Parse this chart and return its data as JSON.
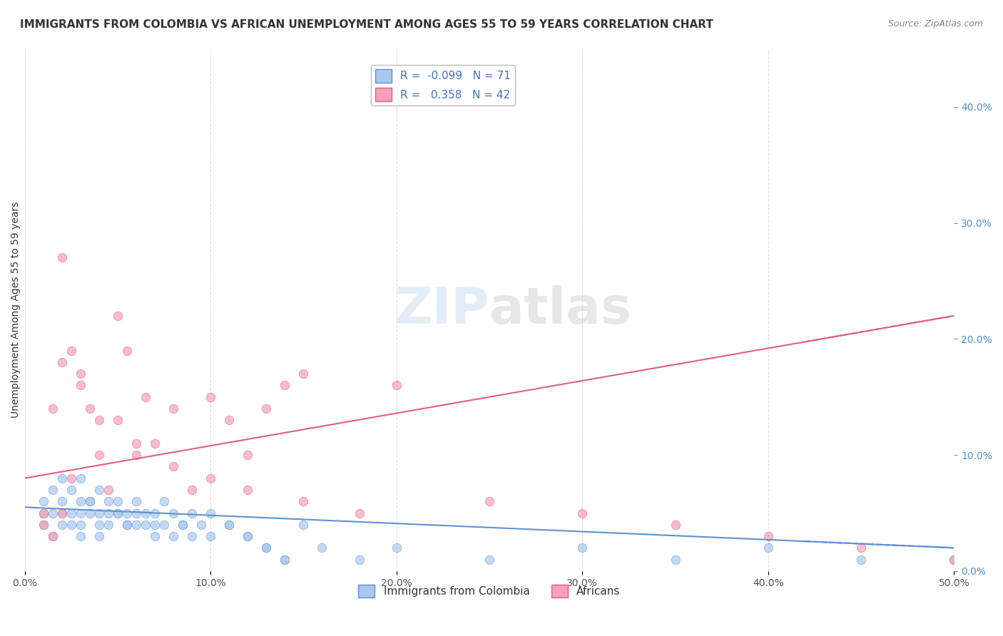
{
  "title": "IMMIGRANTS FROM COLOMBIA VS AFRICAN UNEMPLOYMENT AMONG AGES 55 TO 59 YEARS CORRELATION CHART",
  "source": "Source: ZipAtlas.com",
  "ylabel": "Unemployment Among Ages 55 to 59 years",
  "series1_label": "Immigrants from Colombia",
  "series2_label": "Africans",
  "R1": -0.099,
  "N1": 71,
  "R2": 0.358,
  "N2": 42,
  "color1": "#a8c8f0",
  "color2": "#f4a0b8",
  "trendline1_color": "#6090d0",
  "trendline2_color": "#e06080",
  "xlim": [
    0.0,
    0.5
  ],
  "ylim": [
    0.0,
    0.45
  ],
  "xticks": [
    0.0,
    0.1,
    0.2,
    0.3,
    0.4,
    0.5
  ],
  "yticks": [
    0.0,
    0.1,
    0.2,
    0.3,
    0.4
  ],
  "background_color": "#ffffff",
  "grid_color": "#dddddd",
  "scatter1_x": [
    0.01,
    0.01,
    0.01,
    0.015,
    0.015,
    0.02,
    0.02,
    0.02,
    0.025,
    0.025,
    0.03,
    0.03,
    0.03,
    0.03,
    0.035,
    0.035,
    0.04,
    0.04,
    0.04,
    0.045,
    0.045,
    0.05,
    0.05,
    0.055,
    0.055,
    0.06,
    0.06,
    0.065,
    0.07,
    0.07,
    0.075,
    0.08,
    0.085,
    0.09,
    0.095,
    0.1,
    0.11,
    0.12,
    0.13,
    0.14,
    0.015,
    0.02,
    0.025,
    0.03,
    0.035,
    0.04,
    0.045,
    0.05,
    0.055,
    0.06,
    0.065,
    0.07,
    0.075,
    0.08,
    0.085,
    0.09,
    0.1,
    0.11,
    0.12,
    0.13,
    0.14,
    0.15,
    0.16,
    0.18,
    0.2,
    0.25,
    0.3,
    0.35,
    0.4,
    0.45,
    0.5
  ],
  "scatter1_y": [
    0.05,
    0.04,
    0.06,
    0.03,
    0.05,
    0.05,
    0.04,
    0.06,
    0.04,
    0.05,
    0.06,
    0.05,
    0.04,
    0.03,
    0.05,
    0.06,
    0.04,
    0.05,
    0.03,
    0.05,
    0.04,
    0.06,
    0.05,
    0.04,
    0.05,
    0.04,
    0.06,
    0.05,
    0.04,
    0.05,
    0.06,
    0.05,
    0.04,
    0.05,
    0.04,
    0.05,
    0.04,
    0.03,
    0.02,
    0.01,
    0.07,
    0.08,
    0.07,
    0.08,
    0.06,
    0.07,
    0.06,
    0.05,
    0.04,
    0.05,
    0.04,
    0.03,
    0.04,
    0.03,
    0.04,
    0.03,
    0.03,
    0.04,
    0.03,
    0.02,
    0.01,
    0.04,
    0.02,
    0.01,
    0.02,
    0.01,
    0.02,
    0.01,
    0.02,
    0.01,
    0.01
  ],
  "scatter2_x": [
    0.01,
    0.015,
    0.02,
    0.025,
    0.03,
    0.04,
    0.045,
    0.05,
    0.055,
    0.06,
    0.065,
    0.07,
    0.08,
    0.09,
    0.1,
    0.11,
    0.12,
    0.13,
    0.14,
    0.15,
    0.02,
    0.025,
    0.03,
    0.035,
    0.04,
    0.05,
    0.06,
    0.08,
    0.1,
    0.12,
    0.15,
    0.18,
    0.2,
    0.25,
    0.3,
    0.35,
    0.4,
    0.45,
    0.5,
    0.01,
    0.015,
    0.02
  ],
  "scatter2_y": [
    0.05,
    0.14,
    0.18,
    0.08,
    0.17,
    0.13,
    0.07,
    0.22,
    0.19,
    0.1,
    0.15,
    0.11,
    0.14,
    0.07,
    0.15,
    0.13,
    0.1,
    0.14,
    0.16,
    0.17,
    0.27,
    0.19,
    0.16,
    0.14,
    0.1,
    0.13,
    0.11,
    0.09,
    0.08,
    0.07,
    0.06,
    0.05,
    0.16,
    0.06,
    0.05,
    0.04,
    0.03,
    0.02,
    0.01,
    0.04,
    0.03,
    0.05
  ],
  "trendline1_x": [
    0.0,
    0.5
  ],
  "trendline1_y": [
    0.055,
    0.02
  ],
  "trendline2_x": [
    0.0,
    0.5
  ],
  "trendline2_y": [
    0.08,
    0.22
  ],
  "watermark_zip": "ZIP",
  "watermark_atlas": "atlas",
  "right_yaxis_color": "#5090d0",
  "title_fontsize": 11,
  "label_fontsize": 10,
  "tick_fontsize": 10
}
